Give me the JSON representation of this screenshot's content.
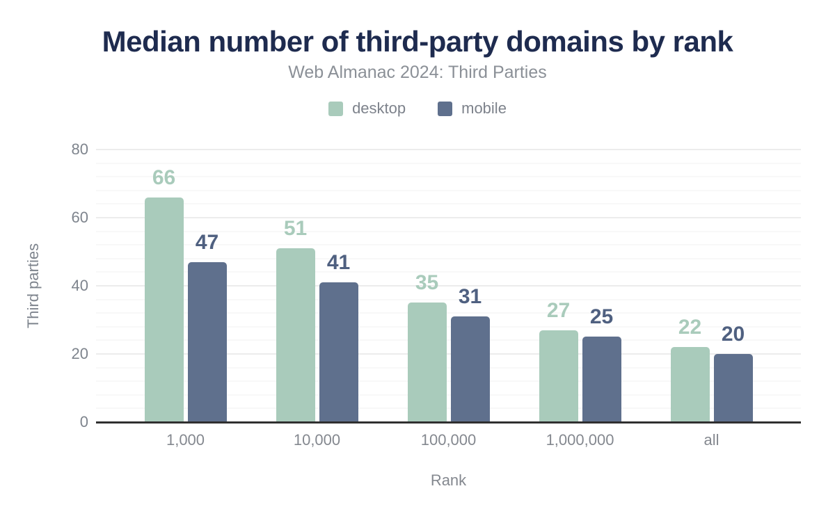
{
  "chart_data": {
    "type": "bar",
    "title": "Median number of third-party domains by rank",
    "subtitle": "Web Almanac 2024: Third Parties",
    "categories": [
      "1,000",
      "10,000",
      "100,000",
      "1,000,000",
      "all"
    ],
    "series": [
      {
        "name": "desktop",
        "color": "#a9cbbb",
        "label_color": "#a9cbbb",
        "values": [
          66,
          51,
          35,
          27,
          22
        ]
      },
      {
        "name": "mobile",
        "color": "#5f708d",
        "label_color": "#4f6080",
        "values": [
          47,
          41,
          31,
          25,
          20
        ]
      }
    ],
    "xlabel": "Rank",
    "ylabel": "Third parties",
    "ylim": [
      0,
      80
    ],
    "yticks": [
      0,
      20,
      40,
      60,
      80
    ],
    "minor_grid_step": 4,
    "major_grid_step": 20,
    "grid": true,
    "legend_position": "top",
    "colors": {
      "title": "#1e2b4f",
      "subtitle": "#8b9097",
      "axis_text": "#7e848d",
      "axis_line": "#303030",
      "major_grid": "#ececec",
      "minor_grid": "#f8f8f8"
    }
  }
}
